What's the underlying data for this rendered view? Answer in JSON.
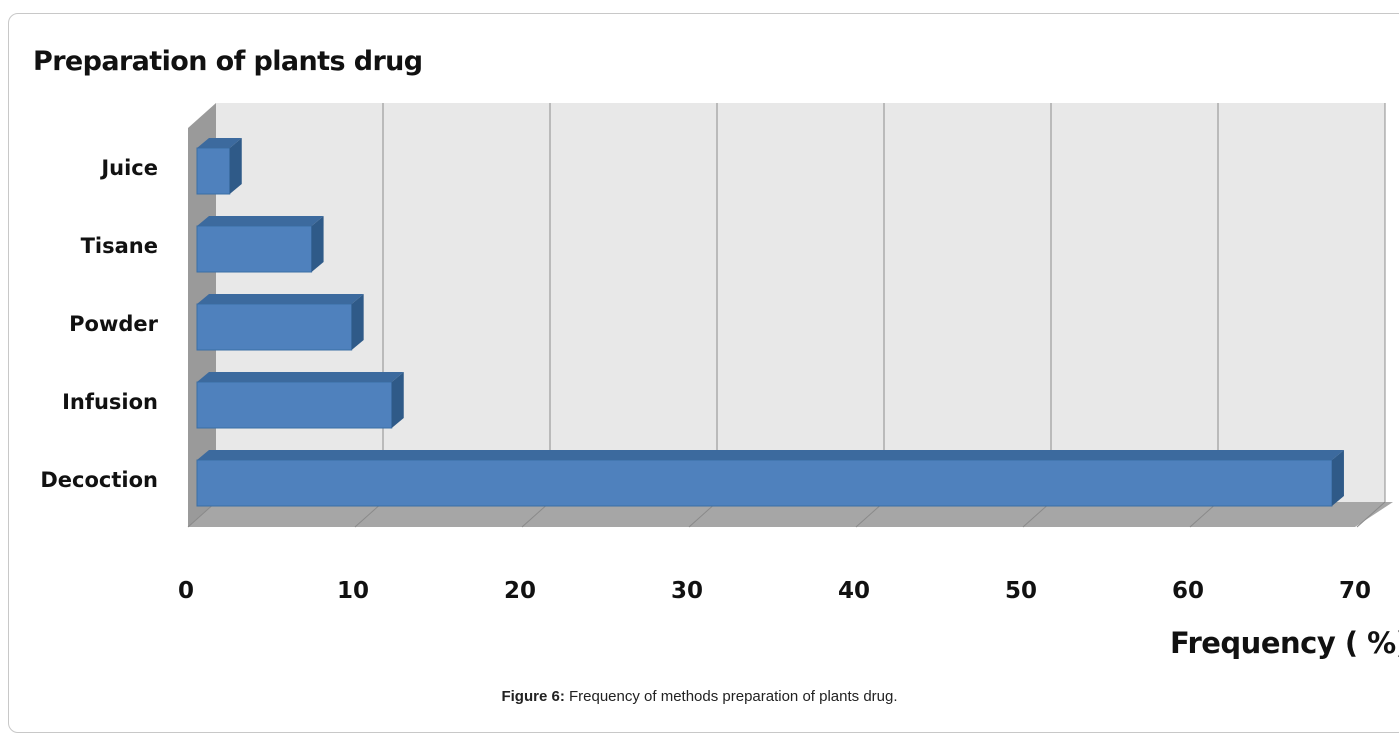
{
  "chart_data": {
    "type": "bar",
    "orientation": "horizontal",
    "style": "3d",
    "title": "Preparation of plants drug",
    "xlabel": "Frequency ( %)",
    "ylabel": "",
    "categories": [
      "Decoction",
      "Infusion",
      "Powder",
      "Tisane",
      "Juice"
    ],
    "values": [
      68.5,
      12.2,
      9.8,
      7.4,
      2.5
    ],
    "xlim": [
      0,
      70
    ],
    "xticks": [
      "0",
      "10",
      "20",
      "30",
      "40",
      "50",
      "60",
      "70"
    ],
    "grid": "vertical",
    "legend": "none",
    "bar_color": "#4f81bd",
    "wall_color": "#e8e8e8",
    "floor_color": "#a6a6a6"
  },
  "caption": {
    "label": "Figure 6:",
    "text": " Frequency of methods preparation of plants drug."
  }
}
